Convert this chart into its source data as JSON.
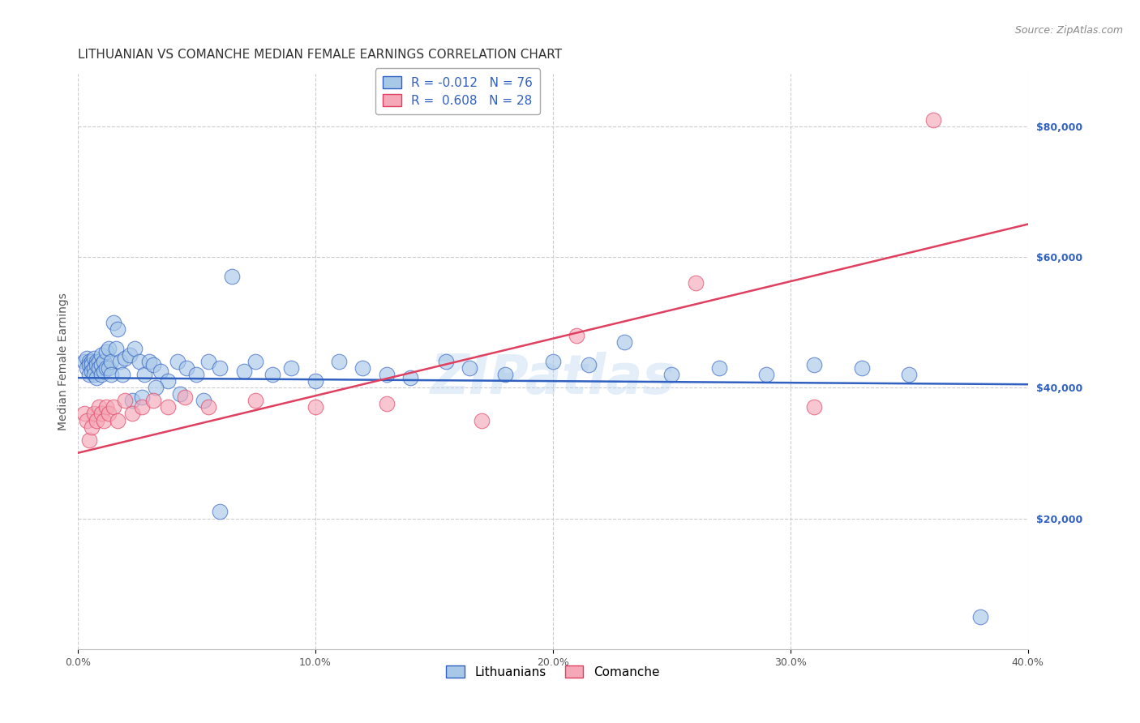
{
  "title": "LITHUANIAN VS COMANCHE MEDIAN FEMALE EARNINGS CORRELATION CHART",
  "source": "Source: ZipAtlas.com",
  "ylabel": "Median Female Earnings",
  "xlim": [
    0.0,
    0.4
  ],
  "ylim": [
    0,
    88000
  ],
  "ytick_labels": [
    "$20,000",
    "$40,000",
    "$60,000",
    "$80,000"
  ],
  "ytick_values": [
    20000,
    40000,
    60000,
    80000
  ],
  "xtick_labels": [
    "0.0%",
    "10.0%",
    "20.0%",
    "30.0%",
    "40.0%"
  ],
  "xtick_values": [
    0.0,
    0.1,
    0.2,
    0.3,
    0.4
  ],
  "watermark": "ZIPatlas",
  "blue_R": -0.012,
  "blue_N": 76,
  "pink_R": 0.608,
  "pink_N": 28,
  "blue_color": "#a8c8e8",
  "pink_color": "#f4a8b8",
  "blue_line_color": "#3060c0",
  "pink_line_color": "#e04060",
  "blue_line_y0": 41500,
  "blue_line_y1": 40500,
  "pink_line_y0": 30000,
  "pink_line_y1": 65000,
  "blue_scatter_x": [
    0.003,
    0.004,
    0.004,
    0.005,
    0.005,
    0.005,
    0.006,
    0.006,
    0.006,
    0.007,
    0.007,
    0.007,
    0.008,
    0.008,
    0.008,
    0.009,
    0.009,
    0.01,
    0.01,
    0.01,
    0.011,
    0.011,
    0.012,
    0.012,
    0.013,
    0.013,
    0.014,
    0.014,
    0.015,
    0.016,
    0.017,
    0.018,
    0.019,
    0.02,
    0.022,
    0.024,
    0.026,
    0.028,
    0.03,
    0.032,
    0.035,
    0.038,
    0.042,
    0.046,
    0.05,
    0.055,
    0.06,
    0.065,
    0.07,
    0.075,
    0.082,
    0.09,
    0.1,
    0.11,
    0.12,
    0.13,
    0.14,
    0.155,
    0.165,
    0.18,
    0.2,
    0.215,
    0.23,
    0.25,
    0.27,
    0.29,
    0.31,
    0.33,
    0.35,
    0.38,
    0.023,
    0.027,
    0.033,
    0.043,
    0.053,
    0.06
  ],
  "blue_scatter_y": [
    44000,
    44500,
    43000,
    44000,
    43500,
    42000,
    44000,
    43500,
    42500,
    44500,
    43000,
    42000,
    44000,
    43500,
    41500,
    44000,
    43000,
    45000,
    43500,
    42000,
    44000,
    42500,
    45500,
    43000,
    46000,
    43000,
    44000,
    42000,
    50000,
    46000,
    49000,
    44000,
    42000,
    44500,
    45000,
    46000,
    44000,
    42000,
    44000,
    43500,
    42500,
    41000,
    44000,
    43000,
    42000,
    44000,
    43000,
    57000,
    42500,
    44000,
    42000,
    43000,
    41000,
    44000,
    43000,
    42000,
    41500,
    44000,
    43000,
    42000,
    44000,
    43500,
    47000,
    42000,
    43000,
    42000,
    43500,
    43000,
    42000,
    5000,
    38000,
    38500,
    40000,
    39000,
    38000,
    21000
  ],
  "pink_scatter_x": [
    0.003,
    0.004,
    0.005,
    0.006,
    0.007,
    0.008,
    0.009,
    0.01,
    0.011,
    0.012,
    0.013,
    0.015,
    0.017,
    0.02,
    0.023,
    0.027,
    0.032,
    0.038,
    0.045,
    0.055,
    0.075,
    0.1,
    0.13,
    0.17,
    0.21,
    0.26,
    0.31,
    0.36
  ],
  "pink_scatter_y": [
    36000,
    35000,
    32000,
    34000,
    36000,
    35000,
    37000,
    36000,
    35000,
    37000,
    36000,
    37000,
    35000,
    38000,
    36000,
    37000,
    38000,
    37000,
    38500,
    37000,
    38000,
    37000,
    37500,
    35000,
    48000,
    56000,
    37000,
    81000
  ],
  "background_color": "#ffffff",
  "grid_color": "#cccccc",
  "title_fontsize": 11,
  "source_fontsize": 9,
  "axis_label_fontsize": 10,
  "tick_fontsize": 9,
  "legend_fontsize": 10
}
